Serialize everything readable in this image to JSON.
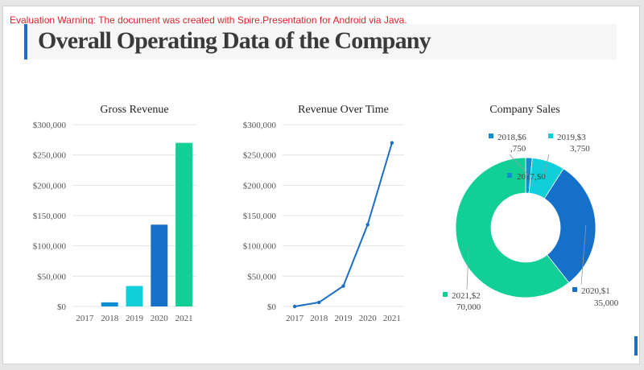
{
  "warning": "Evaluation Warning: The document was created with Spire.Presentation for Android via Java.",
  "slide_title": "Overall Operating Data of the Company",
  "colors": {
    "accent": "#1a6fc4",
    "c2017": "#0d8fd1",
    "c2018": "#0d8fd1",
    "c2019": "#10cfd9",
    "c2020": "#1470c8",
    "c2021": "#12cf96",
    "line": "#1a6fc4"
  },
  "chart_data": [
    {
      "type": "bar",
      "title": "Gross Revenue",
      "categories": [
        "2017",
        "2018",
        "2019",
        "2020",
        "2021"
      ],
      "values": [
        0,
        6750,
        33750,
        135000,
        270000
      ],
      "ylim": [
        0,
        300000
      ],
      "yticks": [
        "$0",
        "$50,000",
        "$100,000",
        "$150,000",
        "$200,000",
        "$250,000",
        "$300,000"
      ],
      "grid": true,
      "xlabel": "",
      "ylabel": ""
    },
    {
      "type": "line",
      "title": "Revenue Over Time",
      "categories": [
        "2017",
        "2018",
        "2019",
        "2020",
        "2021"
      ],
      "values": [
        0,
        6750,
        33750,
        135000,
        270000
      ],
      "ylim": [
        0,
        300000
      ],
      "yticks": [
        "$0",
        "$50,000",
        "$100,000",
        "$150,000",
        "$200,000",
        "$250,000",
        "$300,000"
      ],
      "grid": true,
      "xlabel": "",
      "ylabel": ""
    },
    {
      "type": "pie",
      "donut": true,
      "title": "Company Sales",
      "categories": [
        "2017",
        "2018",
        "2019",
        "2020",
        "2021"
      ],
      "values": [
        0,
        6750,
        33750,
        135000,
        270000
      ],
      "labels": [
        {
          "line1": "2017,$0",
          "line2": ""
        },
        {
          "line1": "2018,$6",
          "line2": ",750"
        },
        {
          "line1": "2019,$3",
          "line2": "3,750"
        },
        {
          "line1": "2020,$1",
          "line2": "35,000"
        },
        {
          "line1": "2021,$2",
          "line2": "70,000"
        }
      ]
    }
  ]
}
